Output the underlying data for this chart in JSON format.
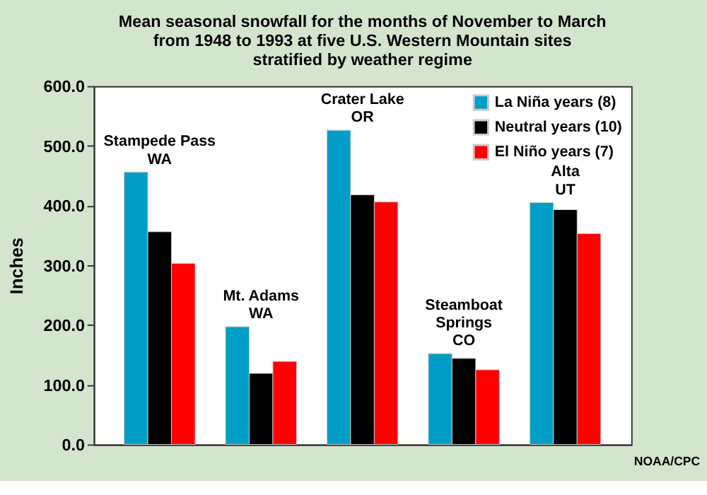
{
  "chart_data": {
    "type": "bar",
    "title": [
      "Mean seasonal snowfall for the months of November to March",
      "from 1948 to 1993 at five U.S. Western Mountain sites",
      "stratified by weather regime"
    ],
    "ylabel": "Inches",
    "categories": [
      "Stampede Pass\nWA",
      "Mt. Adams\nWA",
      "Crater Lake\nOR",
      "Steamboat\nSprings\nCO",
      "Alta\nUT"
    ],
    "series": [
      {
        "name": "La Niña years (8)",
        "color": "#009ec6",
        "values": [
          456,
          197,
          526,
          152,
          405
        ]
      },
      {
        "name": "Neutral years (10)",
        "color": "#000000",
        "values": [
          356,
          119,
          418,
          144,
          393
        ]
      },
      {
        "name": "El Niño years (7)",
        "color": "#ff0000",
        "values": [
          303,
          139,
          406,
          125,
          353
        ]
      }
    ],
    "ylim": [
      0,
      600
    ],
    "yticks": [
      {
        "value": 0,
        "label": "0.0"
      },
      {
        "value": 100,
        "label": "100.0"
      },
      {
        "value": 200,
        "label": "200.0"
      },
      {
        "value": 300,
        "label": "300.0"
      },
      {
        "value": 400,
        "label": "400.0"
      },
      {
        "value": 500,
        "label": "500.0"
      },
      {
        "value": 600,
        "label": "600.0"
      }
    ],
    "tick_labels": "y",
    "grid": false,
    "legend": "top right",
    "annotations": [
      "NOAA/CPC"
    ]
  }
}
